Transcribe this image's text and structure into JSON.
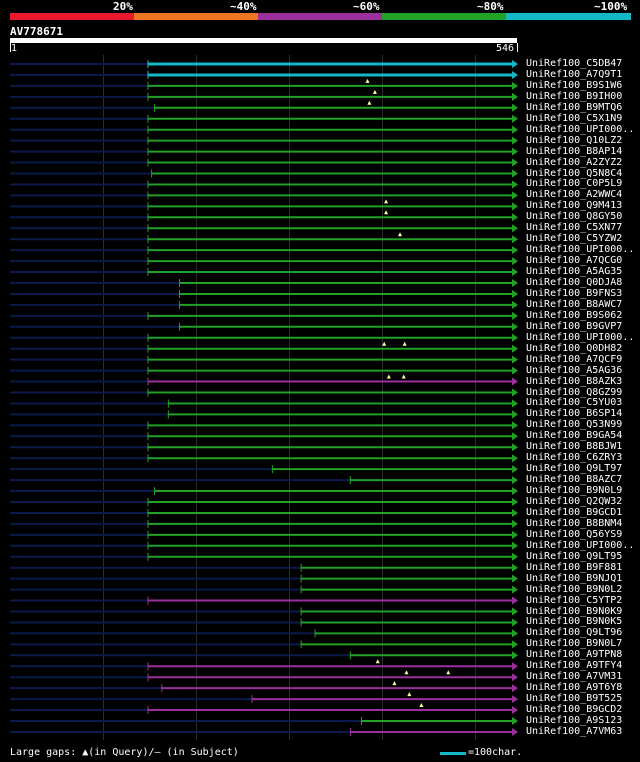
{
  "legend": {
    "colors": [
      "#e8192c",
      "#ee7622",
      "#9b2f9c",
      "#21a126",
      "#13b7c6"
    ],
    "labels": [
      "20%",
      "~40%",
      "~60%",
      "~80%",
      "~100%"
    ]
  },
  "query": {
    "id": "AV778671",
    "start": "1",
    "end": "546",
    "length": 546
  },
  "rows": [
    {
      "name": "UniRef100_C5DB47",
      "start": 148,
      "color": "#13b7c6",
      "marks": []
    },
    {
      "name": "UniRef100_A7Q9T1",
      "start": 148,
      "color": "#13b7c6",
      "marks": []
    },
    {
      "name": "UniRef100_B9S1W6",
      "start": 148,
      "color": "#21a126",
      "marks": [
        385
      ]
    },
    {
      "name": "UniRef100_B9IH00",
      "start": 148,
      "color": "#21a126",
      "marks": [
        393
      ]
    },
    {
      "name": "UniRef100_B9MTQ6",
      "start": 155,
      "color": "#21a126",
      "marks": [
        387
      ]
    },
    {
      "name": "UniRef100_C5X1N9",
      "start": 148,
      "color": "#21a126",
      "marks": []
    },
    {
      "name": "UniRef100_UPI000..",
      "start": 148,
      "color": "#21a126",
      "marks": []
    },
    {
      "name": "UniRef100_Q10LZ2",
      "start": 148,
      "color": "#21a126",
      "marks": []
    },
    {
      "name": "UniRef100_B8AP14",
      "start": 148,
      "color": "#21a126",
      "marks": []
    },
    {
      "name": "UniRef100_A2ZYZ2",
      "start": 148,
      "color": "#21a126",
      "marks": []
    },
    {
      "name": "UniRef100_Q5N8C4",
      "start": 152,
      "color": "#21a126",
      "marks": []
    },
    {
      "name": "UniRef100_C0P5L9",
      "start": 148,
      "color": "#21a126",
      "marks": []
    },
    {
      "name": "UniRef100_A2WWC4",
      "start": 148,
      "color": "#21a126",
      "marks": []
    },
    {
      "name": "UniRef100_Q9M413",
      "start": 148,
      "color": "#21a126",
      "marks": [
        405
      ]
    },
    {
      "name": "UniRef100_Q8GY50",
      "start": 148,
      "color": "#21a126",
      "marks": [
        405
      ]
    },
    {
      "name": "UniRef100_C5XN77",
      "start": 148,
      "color": "#21a126",
      "marks": []
    },
    {
      "name": "UniRef100_C5YZW2",
      "start": 148,
      "color": "#21a126",
      "marks": [
        420
      ]
    },
    {
      "name": "UniRef100_UPI000..",
      "start": 148,
      "color": "#21a126",
      "marks": []
    },
    {
      "name": "UniRef100_A7QCG0",
      "start": 148,
      "color": "#21a126",
      "marks": []
    },
    {
      "name": "UniRef100_A5AG35",
      "start": 148,
      "color": "#21a126",
      "marks": []
    },
    {
      "name": "UniRef100_Q0DJA8",
      "start": 182,
      "color": "#21a126",
      "marks": []
    },
    {
      "name": "UniRef100_B9FNS3",
      "start": 182,
      "color": "#21a126",
      "marks": []
    },
    {
      "name": "UniRef100_B8AWC7",
      "start": 182,
      "color": "#21a126",
      "marks": []
    },
    {
      "name": "UniRef100_B9S062",
      "start": 148,
      "color": "#21a126",
      "marks": []
    },
    {
      "name": "UniRef100_B9GVP7",
      "start": 182,
      "color": "#21a126",
      "marks": []
    },
    {
      "name": "UniRef100_UPI000..",
      "start": 148,
      "color": "#21a126",
      "marks": []
    },
    {
      "name": "UniRef100_Q0DH82",
      "start": 148,
      "color": "#21a126",
      "marks": [
        403,
        425
      ]
    },
    {
      "name": "UniRef100_A7QCF9",
      "start": 148,
      "color": "#21a126",
      "marks": []
    },
    {
      "name": "UniRef100_A5AG36",
      "start": 148,
      "color": "#21a126",
      "marks": []
    },
    {
      "name": "UniRef100_B8AZK3",
      "start": 148,
      "color": "#9b2f9c",
      "marks": [
        408,
        424
      ]
    },
    {
      "name": "UniRef100_Q8GZ99",
      "start": 148,
      "color": "#21a126",
      "marks": []
    },
    {
      "name": "UniRef100_C5YU03",
      "start": 170,
      "color": "#21a126",
      "marks": []
    },
    {
      "name": "UniRef100_B6SP14",
      "start": 170,
      "color": "#21a126",
      "marks": []
    },
    {
      "name": "UniRef100_Q53N99",
      "start": 148,
      "color": "#21a126",
      "marks": []
    },
    {
      "name": "UniRef100_B9GA54",
      "start": 148,
      "color": "#21a126",
      "marks": []
    },
    {
      "name": "UniRef100_B8BJW1",
      "start": 148,
      "color": "#21a126",
      "marks": []
    },
    {
      "name": "UniRef100_C6ZRY3",
      "start": 148,
      "color": "#21a126",
      "marks": []
    },
    {
      "name": "UniRef100_Q9LT97",
      "start": 282,
      "color": "#21a126",
      "marks": []
    },
    {
      "name": "UniRef100_B8AZC7",
      "start": 366,
      "color": "#21a126",
      "marks": []
    },
    {
      "name": "UniRef100_B9N0L9",
      "start": 155,
      "color": "#21a126",
      "marks": []
    },
    {
      "name": "UniRef100_Q2QW32",
      "start": 148,
      "color": "#21a126",
      "marks": []
    },
    {
      "name": "UniRef100_B9GCD1",
      "start": 148,
      "color": "#21a126",
      "marks": []
    },
    {
      "name": "UniRef100_B8BNM4",
      "start": 148,
      "color": "#21a126",
      "marks": []
    },
    {
      "name": "UniRef100_Q56YS9",
      "start": 148,
      "color": "#21a126",
      "marks": []
    },
    {
      "name": "UniRef100_UPI000..",
      "start": 148,
      "color": "#21a126",
      "marks": []
    },
    {
      "name": "UniRef100_Q9LT95",
      "start": 148,
      "color": "#21a126",
      "marks": []
    },
    {
      "name": "UniRef100_B9F881",
      "start": 313,
      "color": "#21a126",
      "marks": []
    },
    {
      "name": "UniRef100_B9NJQ1",
      "start": 313,
      "color": "#21a126",
      "marks": []
    },
    {
      "name": "UniRef100_B9N0L2",
      "start": 313,
      "color": "#21a126",
      "marks": []
    },
    {
      "name": "UniRef100_C5YTP2",
      "start": 148,
      "color": "#9b2f9c",
      "marks": []
    },
    {
      "name": "UniRef100_B9N0K9",
      "start": 313,
      "color": "#21a126",
      "marks": []
    },
    {
      "name": "UniRef100_B9N0K5",
      "start": 313,
      "color": "#21a126",
      "marks": []
    },
    {
      "name": "UniRef100_Q9LT96",
      "start": 328,
      "color": "#21a126",
      "marks": []
    },
    {
      "name": "UniRef100_B9N0L7",
      "start": 313,
      "color": "#21a126",
      "marks": []
    },
    {
      "name": "UniRef100_A9TPN8",
      "start": 366,
      "color": "#21a126",
      "marks": []
    },
    {
      "name": "UniRef100_A9TFY4",
      "start": 148,
      "color": "#9b2f9c",
      "marks": [
        396
      ]
    },
    {
      "name": "UniRef100_A7VM31",
      "start": 148,
      "color": "#9b2f9c",
      "marks": [
        427,
        472
      ]
    },
    {
      "name": "UniRef100_A9T6Y8",
      "start": 163,
      "color": "#9b2f9c",
      "marks": [
        414
      ]
    },
    {
      "name": "UniRef100_B9T525",
      "start": 260,
      "color": "#9b2f9c",
      "marks": [
        430
      ]
    },
    {
      "name": "UniRef100_B9GCD2",
      "start": 148,
      "color": "#9b2f9c",
      "marks": [
        443
      ]
    },
    {
      "name": "UniRef100_A9S123",
      "start": 378,
      "color": "#21a126",
      "marks": []
    },
    {
      "name": "UniRef100_A7VM63",
      "start": 366,
      "color": "#9b2f9c",
      "marks": []
    }
  ],
  "footer": {
    "left": "Large gaps: ▲(in Query)/— (in Subject)",
    "right": "=100char."
  }
}
